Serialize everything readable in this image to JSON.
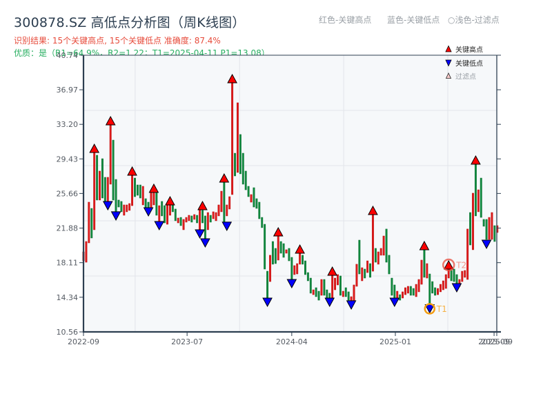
{
  "header": {
    "title": "300878.SZ 高低点分析图（周K线图）",
    "result_line": "识别结果: 15个关键高点, 15个关键低点   准确度: 87.4%",
    "quality_line": "优质：是（R1=64.9%，R2=1.22；T1=2025-04-11 P1=13.08）",
    "color_hints": [
      "红色-关键高点",
      "蓝色-关键低点",
      "○浅色-过滤点"
    ]
  },
  "legend": {
    "items": [
      {
        "symbol": "triangle-up",
        "label": "关键高点"
      },
      {
        "symbol": "triangle-down",
        "label": "关键低点"
      },
      {
        "symbol": "triangle-up-outline",
        "label": "过滤点"
      }
    ]
  },
  "colors": {
    "up": "#e01b1b",
    "up_edge": "#b80c0c",
    "down": "#108a3e",
    "down_edge": "#0a6e30",
    "key_high": "#ff0000",
    "key_low": "#0000ff",
    "filtered": "#f7caca",
    "t1": "#f39c12",
    "t1_label": "#f5b041",
    "t2": "#e74c3c",
    "t2_label": "#f1948a",
    "plot_bg": "#f6f8fa",
    "axis": "#2c3e50"
  },
  "chart_data": {
    "type": "candlestick",
    "title": "300878.SZ 高低点分析图（周K线图）",
    "xlabel": "",
    "ylabel": "",
    "ylim": [
      10.56,
      40.74
    ],
    "yticks": [
      "10.56",
      "14.34",
      "18.11",
      "21.88",
      "25.66",
      "29.43",
      "33.20",
      "36.97",
      "40.74"
    ],
    "xticks": [
      {
        "label": "2022-09",
        "at": 0
      },
      {
        "label": "2023-07",
        "at": 38.3
      },
      {
        "label": "2024-04",
        "at": 77.0
      },
      {
        "label": "2025-01",
        "at": 115.3
      },
      {
        "label": "2025-09",
        "at": 151.8
      },
      {
        "label": "2025-09",
        "at": 152.8
      }
    ],
    "grid": {
      "on": true,
      "x_at": [
        19.1,
        57.7,
        96.2,
        134.7
      ],
      "y_at": [
        34.72,
        28.7,
        22.68,
        16.66
      ]
    },
    "legend_position": "upper right",
    "candle_format": [
      "open",
      "high",
      "low",
      "close"
    ],
    "candles": [
      [
        18.31,
        19.29,
        18.31,
        19.29
      ],
      [
        18.16,
        20.42,
        18.16,
        20.42
      ],
      [
        20.27,
        24.71,
        20.27,
        24.71
      ],
      [
        24.03,
        24.03,
        20.8,
        20.8
      ],
      [
        21.7,
        30.2,
        21.7,
        30.2
      ],
      [
        29.83,
        29.83,
        24.94,
        24.94
      ],
      [
        24.94,
        28.1,
        24.94,
        28.1
      ],
      [
        29.45,
        29.45,
        25.16,
        25.16
      ],
      [
        27.42,
        27.42,
        24.71,
        24.71
      ],
      [
        24.41,
        27.42,
        24.41,
        27.42
      ],
      [
        26.67,
        33.37,
        26.67,
        33.37
      ],
      [
        31.48,
        31.48,
        24.94,
        24.94
      ],
      [
        27.19,
        27.19,
        23.58,
        23.58
      ],
      [
        24.94,
        24.94,
        24.18,
        24.18
      ],
      [
        24.79,
        24.79,
        23.66,
        23.66
      ],
      [
        23.28,
        24.41,
        23.28,
        24.41
      ],
      [
        23.66,
        24.41,
        23.66,
        24.41
      ],
      [
        23.81,
        24.56,
        23.81,
        24.56
      ],
      [
        24.33,
        27.72,
        24.33,
        27.72
      ],
      [
        27.34,
        27.34,
        25.31,
        25.31
      ],
      [
        26.59,
        26.59,
        25.46,
        25.46
      ],
      [
        26.59,
        26.59,
        25.16,
        25.16
      ],
      [
        24.41,
        26.44,
        24.41,
        26.44
      ],
      [
        25.09,
        25.09,
        24.03,
        24.03
      ],
      [
        24.71,
        24.71,
        23.96,
        23.96
      ],
      [
        24.03,
        25.91,
        24.03,
        25.91
      ],
      [
        24.41,
        25.84,
        24.41,
        25.84
      ],
      [
        25.84,
        25.84,
        23.28,
        23.28
      ],
      [
        22.53,
        24.33,
        22.53,
        24.33
      ],
      [
        24.79,
        24.79,
        23.21,
        23.21
      ],
      [
        24.33,
        24.33,
        22.45,
        22.45
      ],
      [
        22.3,
        24.41,
        22.3,
        24.41
      ],
      [
        23.28,
        24.56,
        23.28,
        24.56
      ],
      [
        24.41,
        24.41,
        23.66,
        23.66
      ],
      [
        23.96,
        23.96,
        22.68,
        22.68
      ],
      [
        22.45,
        22.98,
        22.45,
        22.98
      ],
      [
        23.05,
        23.05,
        22.15,
        22.15
      ],
      [
        21.7,
        22.83,
        21.7,
        22.83
      ],
      [
        22.53,
        23.05,
        22.53,
        23.05
      ],
      [
        22.68,
        23.28,
        22.68,
        23.28
      ],
      [
        23.21,
        23.21,
        22.53,
        22.53
      ],
      [
        22.83,
        23.36,
        22.83,
        23.36
      ],
      [
        23.28,
        23.28,
        22.45,
        22.45
      ],
      [
        21.55,
        23.96,
        21.55,
        23.96
      ],
      [
        23.81,
        23.81,
        22.45,
        22.45
      ],
      [
        23.21,
        23.21,
        20.65,
        20.65
      ],
      [
        21.7,
        23.58,
        21.7,
        23.58
      ],
      [
        23.28,
        23.28,
        22.53,
        22.53
      ],
      [
        22.9,
        23.66,
        22.9,
        23.66
      ],
      [
        22.68,
        23.58,
        22.68,
        23.58
      ],
      [
        23.21,
        24.41,
        23.21,
        24.41
      ],
      [
        23.66,
        25.91,
        23.66,
        25.91
      ],
      [
        26.97,
        26.97,
        22.45,
        22.45
      ],
      [
        23.21,
        24.41,
        23.21,
        24.41
      ],
      [
        23.96,
        25.31,
        23.96,
        25.31
      ],
      [
        25.54,
        37.88,
        25.54,
        37.88
      ],
      [
        30.05,
        30.05,
        27.57,
        27.57
      ],
      [
        27.95,
        35.55,
        27.95,
        35.55
      ],
      [
        32.09,
        32.09,
        27.8,
        27.8
      ],
      [
        30.05,
        30.05,
        26.67,
        26.67
      ],
      [
        28.1,
        28.1,
        26.06,
        26.06
      ],
      [
        26.44,
        26.44,
        25.31,
        25.31
      ],
      [
        24.71,
        25.54,
        24.71,
        25.54
      ],
      [
        26.29,
        26.29,
        24.18,
        24.18
      ],
      [
        25.09,
        25.09,
        24.03,
        24.03
      ],
      [
        24.71,
        24.71,
        22.9,
        22.9
      ],
      [
        23.05,
        23.05,
        21.93,
        21.93
      ],
      [
        22.3,
        22.3,
        17.41,
        17.41
      ],
      [
        17.18,
        17.18,
        14.17,
        14.17
      ],
      [
        16.05,
        18.92,
        16.05,
        18.92
      ],
      [
        20.42,
        20.42,
        17.94,
        17.94
      ],
      [
        19.67,
        19.67,
        18.01,
        18.01
      ],
      [
        18.39,
        21.17,
        18.39,
        21.17
      ],
      [
        20.42,
        20.42,
        19.14,
        19.14
      ],
      [
        20.19,
        20.19,
        18.69,
        18.69
      ],
      [
        19.14,
        19.52,
        19.14,
        19.52
      ],
      [
        19.67,
        19.67,
        18.31,
        18.31
      ],
      [
        18.69,
        18.69,
        16.13,
        16.13
      ],
      [
        16.81,
        17.79,
        16.81,
        17.79
      ],
      [
        16.88,
        18.01,
        16.88,
        18.01
      ],
      [
        17.94,
        19.29,
        17.94,
        19.29
      ],
      [
        18.92,
        18.92,
        17.94,
        17.94
      ],
      [
        18.31,
        18.31,
        16.81,
        16.81
      ],
      [
        17.03,
        17.03,
        16.13,
        16.13
      ],
      [
        16.43,
        16.43,
        14.78,
        14.78
      ],
      [
        14.62,
        15.15,
        14.62,
        15.15
      ],
      [
        15.38,
        15.38,
        14.4,
        14.4
      ],
      [
        15.0,
        15.0,
        14.02,
        14.02
      ],
      [
        14.55,
        16.28,
        14.55,
        16.28
      ],
      [
        16.28,
        16.28,
        14.55,
        14.55
      ],
      [
        15.15,
        15.15,
        14.17,
        14.17
      ],
      [
        14.78,
        14.78,
        14.02,
        14.02
      ],
      [
        14.17,
        16.81,
        14.17,
        16.81
      ],
      [
        15.15,
        16.43,
        15.15,
        16.43
      ],
      [
        15.68,
        16.81,
        15.68,
        16.81
      ],
      [
        16.66,
        16.66,
        14.55,
        14.55
      ],
      [
        14.4,
        15.0,
        14.4,
        15.0
      ],
      [
        15.38,
        15.38,
        14.4,
        14.4
      ],
      [
        14.93,
        14.93,
        14.02,
        14.02
      ],
      [
        13.8,
        14.4,
        13.8,
        14.4
      ],
      [
        13.87,
        15.68,
        13.87,
        15.68
      ],
      [
        15.53,
        17.94,
        15.53,
        17.94
      ],
      [
        20.57,
        20.57,
        16.88,
        16.88
      ],
      [
        16.13,
        17.56,
        16.13,
        17.56
      ],
      [
        17.41,
        17.41,
        16.43,
        16.43
      ],
      [
        17.03,
        18.31,
        17.03,
        18.31
      ],
      [
        18.01,
        18.01,
        16.51,
        16.51
      ],
      [
        17.18,
        23.43,
        17.18,
        23.43
      ],
      [
        19.67,
        19.67,
        18.16,
        18.16
      ],
      [
        17.94,
        19.29,
        17.94,
        19.29
      ],
      [
        18.92,
        19.67,
        18.92,
        19.67
      ],
      [
        18.92,
        21.02,
        18.92,
        21.02
      ],
      [
        21.78,
        21.78,
        18.16,
        18.16
      ],
      [
        18.92,
        18.92,
        16.88,
        16.88
      ],
      [
        16.43,
        16.43,
        14.55,
        14.55
      ],
      [
        15.68,
        15.68,
        14.17,
        14.17
      ],
      [
        14.17,
        15.0,
        14.17,
        15.0
      ],
      [
        14.62,
        14.62,
        14.02,
        14.02
      ],
      [
        14.25,
        14.93,
        14.25,
        14.93
      ],
      [
        14.62,
        15.38,
        14.62,
        15.38
      ],
      [
        14.78,
        15.53,
        14.78,
        15.53
      ],
      [
        15.53,
        15.53,
        14.55,
        14.55
      ],
      [
        15.3,
        15.3,
        14.55,
        14.55
      ],
      [
        14.4,
        15.75,
        14.4,
        15.75
      ],
      [
        14.93,
        16.28,
        14.93,
        16.28
      ],
      [
        15.75,
        18.39,
        15.75,
        18.39
      ],
      [
        19.52,
        19.52,
        16.51,
        16.51
      ],
      [
        16.43,
        18.01,
        16.43,
        18.01
      ],
      [
        16.88,
        16.88,
        13.5,
        13.5
      ],
      [
        16.05,
        16.05,
        14.78,
        14.78
      ],
      [
        15.38,
        15.38,
        14.55,
        14.55
      ],
      [
        14.62,
        15.3,
        14.62,
        15.3
      ],
      [
        14.93,
        15.75,
        14.93,
        15.75
      ],
      [
        15.15,
        16.13,
        15.15,
        16.13
      ],
      [
        15.3,
        16.81,
        15.3,
        16.81
      ],
      [
        16.43,
        18.01,
        16.43,
        18.01
      ],
      [
        17.26,
        17.26,
        16.13,
        16.13
      ],
      [
        17.41,
        17.41,
        16.05,
        16.05
      ],
      [
        16.81,
        16.81,
        15.38,
        15.38
      ],
      [
        15.53,
        16.28,
        15.53,
        16.28
      ],
      [
        16.05,
        17.18,
        16.05,
        17.18
      ],
      [
        16.51,
        17.26,
        16.51,
        17.26
      ],
      [
        16.28,
        21.78,
        16.28,
        21.78
      ],
      [
        23.58,
        23.58,
        20.04,
        20.04
      ],
      [
        19.52,
        25.69,
        19.52,
        25.69
      ],
      [
        28.92,
        28.92,
        23.21,
        23.21
      ],
      [
        23.66,
        26.06,
        23.66,
        26.06
      ],
      [
        27.34,
        27.34,
        23.05,
        23.05
      ],
      [
        22.83,
        22.83,
        22.08,
        22.08
      ],
      [
        22.83,
        22.83,
        20.65,
        20.65
      ],
      [
        20.65,
        23.05,
        20.65,
        23.05
      ],
      [
        20.65,
        23.58,
        20.65,
        23.58
      ],
      [
        22.15,
        22.15,
        20.42,
        20.42
      ],
      [
        21.4,
        22.15,
        21.4,
        22.15
      ]
    ],
    "key_highs": [
      {
        "i": 4,
        "price": 30.58
      },
      {
        "i": 10,
        "price": 33.59
      },
      {
        "i": 18,
        "price": 28.1
      },
      {
        "i": 26,
        "price": 26.22
      },
      {
        "i": 32,
        "price": 24.86
      },
      {
        "i": 44,
        "price": 24.33
      },
      {
        "i": 52,
        "price": 27.34
      },
      {
        "i": 55,
        "price": 38.18
      },
      {
        "i": 72,
        "price": 21.47
      },
      {
        "i": 80,
        "price": 19.59
      },
      {
        "i": 92,
        "price": 17.18
      },
      {
        "i": 107,
        "price": 23.81
      },
      {
        "i": 126,
        "price": 19.97
      },
      {
        "i": 135,
        "price": 17.86
      },
      {
        "i": 145,
        "price": 29.3
      }
    ],
    "key_lows": [
      {
        "i": 9,
        "price": 24.33
      },
      {
        "i": 12,
        "price": 23.21
      },
      {
        "i": 24,
        "price": 23.66
      },
      {
        "i": 28,
        "price": 22.15
      },
      {
        "i": 43,
        "price": 21.25
      },
      {
        "i": 45,
        "price": 20.27
      },
      {
        "i": 53,
        "price": 22.08
      },
      {
        "i": 68,
        "price": 13.8
      },
      {
        "i": 77,
        "price": 15.83
      },
      {
        "i": 91,
        "price": 13.8
      },
      {
        "i": 99,
        "price": 13.5
      },
      {
        "i": 115,
        "price": 13.8
      },
      {
        "i": 128,
        "price": 13.08
      },
      {
        "i": 138,
        "price": 15.38
      },
      {
        "i": 149,
        "price": 20.12
      }
    ],
    "annotations": [
      {
        "label": "T1",
        "i": 128,
        "price": 13.08,
        "kind": "low",
        "r": 7
      },
      {
        "label": "T2",
        "i": 135,
        "price": 17.86,
        "kind": "high",
        "r": 8
      }
    ]
  }
}
